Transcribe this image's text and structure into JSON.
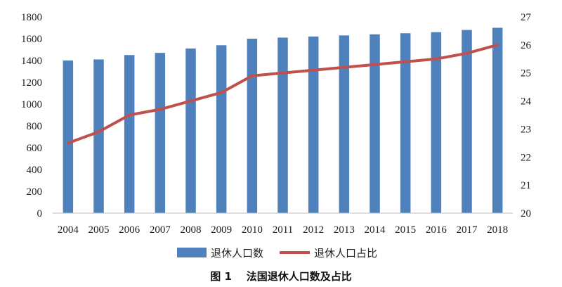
{
  "chart_data": {
    "type": "bar+line",
    "categories": [
      "2004",
      "2005",
      "2006",
      "2007",
      "2008",
      "2009",
      "2010",
      "2011",
      "2012",
      "2013",
      "2014",
      "2015",
      "2016",
      "2017",
      "2018"
    ],
    "series": [
      {
        "name": "退休人口数",
        "type": "bar",
        "axis": "left",
        "color": "#4f81bd",
        "values": [
          1400,
          1410,
          1450,
          1470,
          1510,
          1540,
          1600,
          1610,
          1620,
          1630,
          1640,
          1650,
          1660,
          1680,
          1700
        ]
      },
      {
        "name": "退休人口占比",
        "type": "line",
        "axis": "right",
        "color": "#c0504d",
        "values": [
          22.5,
          22.9,
          23.5,
          23.7,
          24.0,
          24.3,
          24.9,
          25.0,
          25.1,
          25.2,
          25.3,
          25.4,
          25.5,
          25.7,
          26.0
        ]
      }
    ],
    "y_left": {
      "min": 0,
      "max": 1800,
      "ticks": [
        "0",
        "200",
        "400",
        "600",
        "800",
        "1000",
        "1200",
        "1400",
        "1600",
        "1800"
      ]
    },
    "y_right": {
      "min": 20,
      "max": 27,
      "ticks": [
        "20",
        "21",
        "22",
        "23",
        "24",
        "25",
        "26",
        "27"
      ]
    },
    "grid": false,
    "legend_position": "bottom",
    "caption": "图 1    法国退休人口数及占比"
  }
}
